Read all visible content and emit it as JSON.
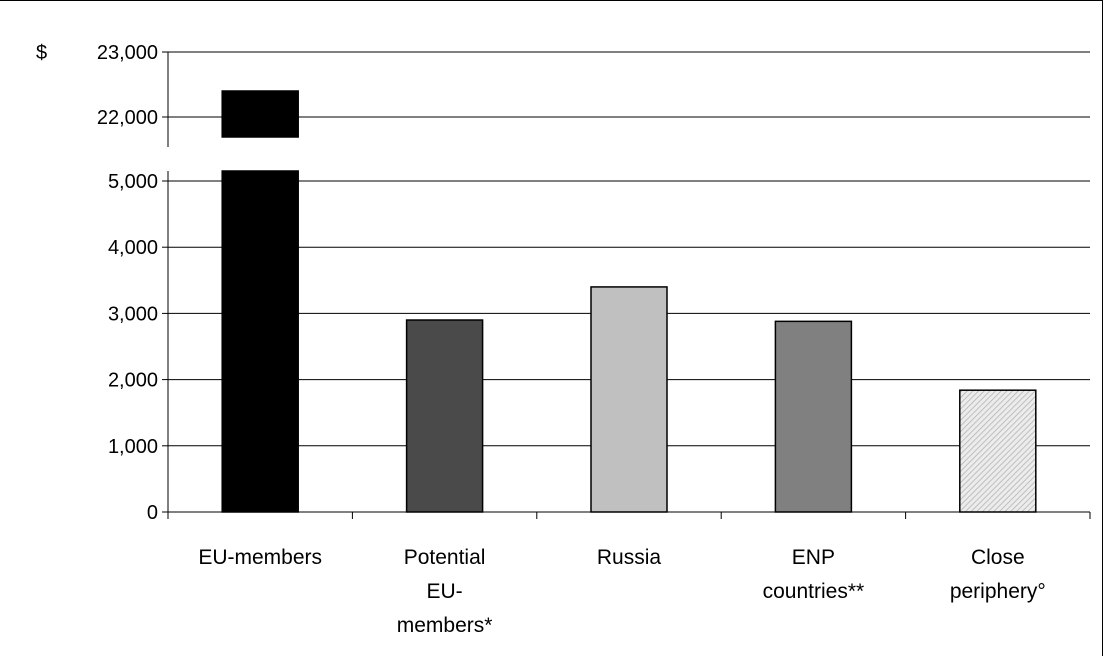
{
  "chart_data": {
    "type": "bar",
    "title": "",
    "xlabel": "",
    "ylabel": "",
    "currency_symbol": "$",
    "axis_break": true,
    "categories": [
      "EU-members",
      "Potential EU-members*",
      "Russia",
      "ENP countries**",
      "Close periphery°"
    ],
    "category_label_lines": [
      [
        "EU-members"
      ],
      [
        "Potential",
        "EU-",
        "members*"
      ],
      [
        "Russia"
      ],
      [
        "ENP",
        "countries**"
      ],
      [
        "Close",
        "periphery°"
      ]
    ],
    "values": [
      22400,
      2900,
      3400,
      2880,
      1840
    ],
    "bar_colors": [
      "#000000",
      "#4a4a4a",
      "#c0c0c0",
      "#808080",
      "#e8e8e8"
    ],
    "bar_patterns": [
      "solid",
      "solid",
      "solid",
      "solid",
      "hatched"
    ],
    "lower_segment": {
      "ylim": [
        0,
        5000
      ],
      "yticks": [
        0,
        1000,
        2000,
        3000,
        4000,
        5000
      ],
      "ytick_labels": [
        "0",
        "1,000",
        "2,000",
        "3,000",
        "4,000",
        "5,000"
      ]
    },
    "upper_segment": {
      "ylim": [
        22000,
        23000
      ],
      "yticks": [
        22000,
        23000
      ],
      "ytick_labels": [
        "22,000",
        "23,000"
      ]
    },
    "grid": true,
    "legend": "none"
  }
}
